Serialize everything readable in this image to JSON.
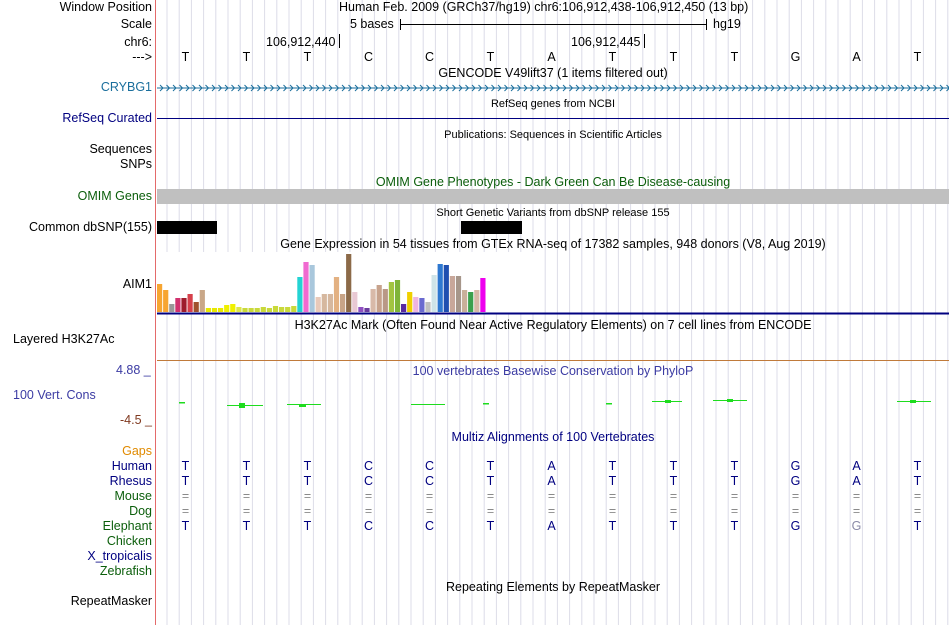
{
  "header": {
    "window_position_label": "Window Position",
    "window_position_value": "Human Feb. 2009 (GRCh37/hg19)   chr6:106,912,438-106,912,450 (13 bp)",
    "scale_label": "Scale",
    "scale_length": "5 bases",
    "scale_assembly": "hg19",
    "chrom_label": "chr6:",
    "coord_1": "106,912,440",
    "coord_2": "106,912,445",
    "strand_label": "--->"
  },
  "reference_bases": [
    "T",
    "T",
    "T",
    "C",
    "C",
    "T",
    "A",
    "T",
    "T",
    "T",
    "G",
    "A",
    "T"
  ],
  "tracks": {
    "gencode": {
      "title": "GENCODE V49lift37 (1 items filtered out)",
      "item": "CRYBG1"
    },
    "refseq": {
      "title": "RefSeq genes from NCBI",
      "label": "RefSeq Curated"
    },
    "publications": {
      "title": "Publications: Sequences in Scientific Articles",
      "label_1": "Sequences",
      "label_2": "SNPs"
    },
    "omim": {
      "title": "OMIM Gene Phenotypes - Dark Green Can Be Disease-causing",
      "label": "OMIM Genes"
    },
    "dbsnp": {
      "title": "Short Genetic Variants from dbSNP release 155",
      "label": "Common dbSNP(155)"
    },
    "gtex": {
      "title": "Gene Expression in 54 tissues from GTEx RNA-seq of 17382 samples, 948 donors (V8, Aug 2019)",
      "label": "AIM1"
    },
    "h3k27ac": {
      "title": "H3K27Ac Mark (Often Found Near Active Regulatory Elements) on 7 cell lines from ENCODE",
      "label": "Layered H3K27Ac"
    },
    "phylop": {
      "title": "100 vertebrates Basewise Conservation by PhyloP",
      "label": "100 Vert. Cons",
      "max": "4.88 _",
      "min": "-4.5 _"
    },
    "multiz": {
      "title": "Multiz Alignments of 100 Vertebrates",
      "gaps_label": "Gaps"
    },
    "repeatmasker": {
      "title": "Repeating Elements by RepeatMasker",
      "label": "RepeatMasker"
    }
  },
  "gtex_bars": [
    {
      "value": 28,
      "color": "#f7a531"
    },
    {
      "value": 22,
      "color": "#f7a531"
    },
    {
      "value": 8,
      "color": "#999999"
    },
    {
      "value": 14,
      "color": "#d1326e"
    },
    {
      "value": 14,
      "color": "#9e1c2c"
    },
    {
      "value": 18,
      "color": "#d6404b"
    },
    {
      "value": 10,
      "color": "#a0522d"
    },
    {
      "value": 22,
      "color": "#c9a788"
    },
    {
      "value": 4,
      "color": "#e8e800"
    },
    {
      "value": 4,
      "color": "#e8e800"
    },
    {
      "value": 4,
      "color": "#e8e800"
    },
    {
      "value": 7,
      "color": "#f0f000"
    },
    {
      "value": 8,
      "color": "#f0f000"
    },
    {
      "value": 5,
      "color": "#dde64a"
    },
    {
      "value": 4,
      "color": "#c9d93a"
    },
    {
      "value": 4,
      "color": "#c9d93a"
    },
    {
      "value": 4,
      "color": "#c9d93a"
    },
    {
      "value": 5,
      "color": "#c9d93a"
    },
    {
      "value": 4,
      "color": "#c9d93a"
    },
    {
      "value": 6,
      "color": "#c9d93a"
    },
    {
      "value": 5,
      "color": "#c9d93a"
    },
    {
      "value": 5,
      "color": "#c9d93a"
    },
    {
      "value": 6,
      "color": "#c9d93a"
    },
    {
      "value": 35,
      "color": "#23d3d3"
    },
    {
      "value": 50,
      "color": "#f06ad0"
    },
    {
      "value": 47,
      "color": "#a9c7dc"
    },
    {
      "value": 15,
      "color": "#e9c9b9"
    },
    {
      "value": 18,
      "color": "#d6b89f"
    },
    {
      "value": 18,
      "color": "#d6b89f"
    },
    {
      "value": 35,
      "color": "#e3b182"
    },
    {
      "value": 18,
      "color": "#c8a487"
    },
    {
      "value": 58,
      "color": "#8c6a48"
    },
    {
      "value": 20,
      "color": "#e9c9d4"
    },
    {
      "value": 5,
      "color": "#8f4fc0"
    },
    {
      "value": 4,
      "color": "#6a3b9e"
    },
    {
      "value": 23,
      "color": "#d8b9a8"
    },
    {
      "value": 27,
      "color": "#c7a28c"
    },
    {
      "value": 23,
      "color": "#b99886"
    },
    {
      "value": 30,
      "color": "#a2c440"
    },
    {
      "value": 32,
      "color": "#7fb438"
    },
    {
      "value": 8,
      "color": "#5a2ba0"
    },
    {
      "value": 20,
      "color": "#f0d000"
    },
    {
      "value": 15,
      "color": "#eeb4e0"
    },
    {
      "value": 14,
      "color": "#6a6ad0"
    },
    {
      "value": 10,
      "color": "#c0c0c0"
    },
    {
      "value": 37,
      "color": "#cfe4e8"
    },
    {
      "value": 48,
      "color": "#2e78d0"
    },
    {
      "value": 47,
      "color": "#1f4fb0"
    },
    {
      "value": 36,
      "color": "#c8a79a"
    },
    {
      "value": 36,
      "color": "#a6968a"
    },
    {
      "value": 22,
      "color": "#c9b09a"
    },
    {
      "value": 20,
      "color": "#3aa04d"
    },
    {
      "value": 22,
      "color": "#d6b8a6"
    },
    {
      "value": 34,
      "color": "#ee00ee"
    }
  ],
  "species": [
    {
      "name": "Human",
      "color": "#000080",
      "bases": [
        "T",
        "T",
        "T",
        "C",
        "C",
        "T",
        "A",
        "T",
        "T",
        "T",
        "G",
        "A",
        "T"
      ]
    },
    {
      "name": "Rhesus",
      "color": "#000080",
      "bases": [
        "T",
        "T",
        "T",
        "C",
        "C",
        "T",
        "A",
        "T",
        "T",
        "T",
        "G",
        "A",
        "T"
      ]
    },
    {
      "name": "Mouse",
      "color": "#0b5e0b",
      "bases": [
        "=",
        "=",
        "=",
        "=",
        "=",
        "=",
        "=",
        "=",
        "=",
        "=",
        "=",
        "=",
        "="
      ]
    },
    {
      "name": "Dog",
      "color": "#0b5e0b",
      "bases": [
        "=",
        "=",
        "=",
        "=",
        "=",
        "=",
        "=",
        "=",
        "=",
        "=",
        "=",
        "=",
        "="
      ]
    },
    {
      "name": "Elephant",
      "color": "#0b5e0b",
      "bases": [
        "T",
        "T",
        "T",
        "C",
        "C",
        "T",
        "A",
        "T",
        "T",
        "T",
        "G",
        "G",
        "T"
      ]
    },
    {
      "name": "Chicken",
      "color": "#0b5e0b",
      "bases": []
    },
    {
      "name": "X_tropicalis",
      "color": "#000080",
      "bases": []
    },
    {
      "name": "Zebrafish",
      "color": "#0b5e0b",
      "bases": []
    }
  ],
  "colors": {
    "track_navy": "#000080",
    "omim_grey": "#c0c0c0",
    "h3k27ac_line": "#c07a3a",
    "phylop_green": "#1edc1e",
    "left_border": "#e46a6a",
    "grid_line": "#dcdce8"
  }
}
